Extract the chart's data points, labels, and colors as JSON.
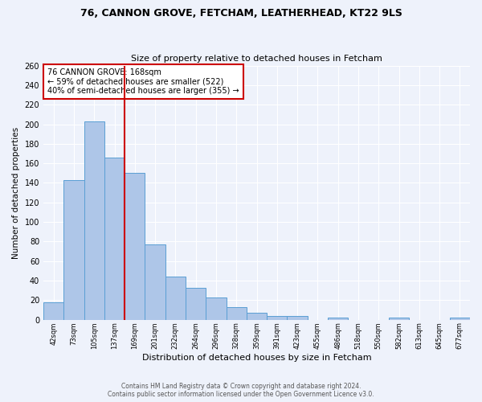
{
  "title1": "76, CANNON GROVE, FETCHAM, LEATHERHEAD, KT22 9LS",
  "title2": "Size of property relative to detached houses in Fetcham",
  "xlabel": "Distribution of detached houses by size in Fetcham",
  "ylabel": "Number of detached properties",
  "bar_values": [
    18,
    143,
    203,
    166,
    150,
    77,
    44,
    33,
    23,
    13,
    7,
    4,
    4,
    0,
    2,
    0,
    0,
    2,
    0,
    0,
    2
  ],
  "bar_labels": [
    "42sqm",
    "73sqm",
    "105sqm",
    "137sqm",
    "169sqm",
    "201sqm",
    "232sqm",
    "264sqm",
    "296sqm",
    "328sqm",
    "359sqm",
    "391sqm",
    "423sqm",
    "455sqm",
    "486sqm",
    "518sqm",
    "550sqm",
    "582sqm",
    "613sqm",
    "645sqm",
    "677sqm"
  ],
  "bar_color": "#aec6e8",
  "bar_edge_color": "#5a9fd4",
  "vline_color": "#cc0000",
  "annotation_title": "76 CANNON GROVE: 168sqm",
  "annotation_line1": "← 59% of detached houses are smaller (522)",
  "annotation_line2": "40% of semi-detached houses are larger (355) →",
  "annotation_box_color": "#cc0000",
  "ylim": [
    0,
    260
  ],
  "yticks": [
    0,
    20,
    40,
    60,
    80,
    100,
    120,
    140,
    160,
    180,
    200,
    220,
    240,
    260
  ],
  "footer1": "Contains HM Land Registry data © Crown copyright and database right 2024.",
  "footer2": "Contains public sector information licensed under the Open Government Licence v3.0.",
  "bg_color": "#eef2fb",
  "grid_color": "#ffffff"
}
